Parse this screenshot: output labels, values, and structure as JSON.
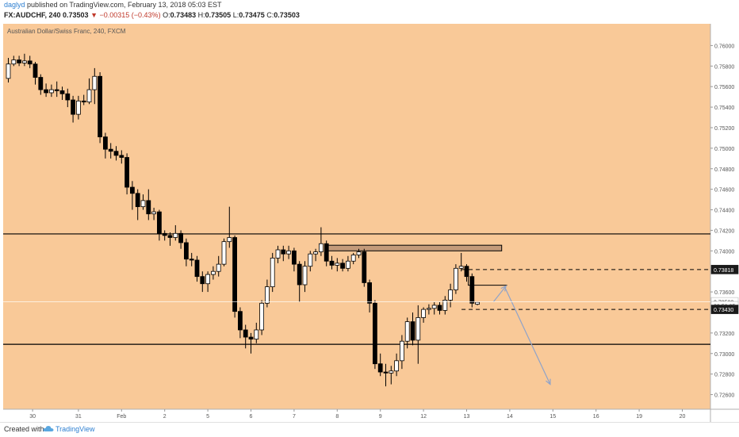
{
  "header": {
    "publisher": "daglyd",
    "published_text": "published on TradingView.com, February 13, 2018 05:03 EST",
    "symbol": "FX:AUDCHF, 240",
    "last": "0.73503",
    "change": "▼ −0.00315 (−0.43%)",
    "open_label": "O:",
    "open": "0.73483",
    "high_label": "H:",
    "high": "0.73505",
    "low_label": "L:",
    "low": "0.73475",
    "close_label": "C:",
    "close": "0.73503"
  },
  "footer": {
    "created_with": "Created with",
    "brand": "TradingView",
    "brand_icon": "cloud-icon"
  },
  "colors": {
    "plot_bg": "#f9c998",
    "axis_bg": "#ffffff",
    "bull": "#ffffff",
    "bear": "#000000",
    "line": "#000000",
    "resistance_box": "#c39a7a",
    "projection": "#8fa3c9",
    "current_price": "#ffffff"
  },
  "chart_data": {
    "type": "candlestick",
    "title": "Australian Dollar/Swiss Franc, 240, FXCM",
    "ylim": [
      0.7255,
      0.7615
    ],
    "x_ticks": [
      {
        "label": "30",
        "i": 4.5
      },
      {
        "label": "31",
        "i": 13
      },
      {
        "label": "Feb",
        "i": 21
      },
      {
        "label": "2",
        "i": 29
      },
      {
        "label": "5",
        "i": 37
      },
      {
        "label": "6",
        "i": 45
      },
      {
        "label": "7",
        "i": 53
      },
      {
        "label": "8",
        "i": 61
      },
      {
        "label": "9",
        "i": 69
      },
      {
        "label": "12",
        "i": 77
      },
      {
        "label": "13",
        "i": 85
      },
      {
        "label": "14",
        "i": 93
      },
      {
        "label": "15",
        "i": 101
      },
      {
        "label": "16",
        "i": 109
      },
      {
        "label": "19",
        "i": 117
      },
      {
        "label": "20",
        "i": 125
      }
    ],
    "y_ticks": [
      "0.76000",
      "0.75800",
      "0.75600",
      "0.75400",
      "0.75200",
      "0.75000",
      "0.74800",
      "0.74600",
      "0.74400",
      "0.74200",
      "0.74000",
      "0.73600",
      "0.73200",
      "0.73000",
      "0.72800",
      "0.72600"
    ],
    "candles": [
      [
        0.7568,
        0.7582,
        0.7564,
        0.7588
      ],
      [
        0.7582,
        0.7586,
        0.758,
        0.759
      ],
      [
        0.7586,
        0.7583,
        0.758,
        0.759
      ],
      [
        0.7583,
        0.7585,
        0.758,
        0.7592
      ],
      [
        0.7585,
        0.7582,
        0.7578,
        0.759
      ],
      [
        0.7582,
        0.7569,
        0.7562,
        0.7584
      ],
      [
        0.7569,
        0.7557,
        0.7552,
        0.7572
      ],
      [
        0.7557,
        0.7554,
        0.755,
        0.7563
      ],
      [
        0.7554,
        0.7557,
        0.755,
        0.7562
      ],
      [
        0.7557,
        0.7556,
        0.755,
        0.7565
      ],
      [
        0.7556,
        0.7553,
        0.7547,
        0.756
      ],
      [
        0.7553,
        0.7547,
        0.754,
        0.7558
      ],
      [
        0.7547,
        0.7533,
        0.7525,
        0.7551
      ],
      [
        0.7533,
        0.7546,
        0.7528,
        0.7551
      ],
      [
        0.7546,
        0.7545,
        0.7542,
        0.7552
      ],
      [
        0.7545,
        0.7557,
        0.7543,
        0.7568
      ],
      [
        0.7557,
        0.757,
        0.7543,
        0.7578
      ],
      [
        0.757,
        0.7511,
        0.7505,
        0.7574
      ],
      [
        0.7511,
        0.7499,
        0.749,
        0.7515
      ],
      [
        0.7499,
        0.7497,
        0.749,
        0.7505
      ],
      [
        0.7497,
        0.7493,
        0.7488,
        0.7502
      ],
      [
        0.7493,
        0.7491,
        0.7485,
        0.7498
      ],
      [
        0.7491,
        0.7462,
        0.7455,
        0.7495
      ],
      [
        0.7462,
        0.7456,
        0.744,
        0.7468
      ],
      [
        0.7456,
        0.7443,
        0.743,
        0.746
      ],
      [
        0.7443,
        0.7449,
        0.744,
        0.7455
      ],
      [
        0.7449,
        0.7436,
        0.743,
        0.746
      ],
      [
        0.7436,
        0.7438,
        0.743,
        0.7442
      ],
      [
        0.7438,
        0.7417,
        0.741,
        0.744
      ],
      [
        0.7417,
        0.7415,
        0.741,
        0.742
      ],
      [
        0.7415,
        0.7413,
        0.7405,
        0.7418
      ],
      [
        0.7413,
        0.7417,
        0.741,
        0.7425
      ],
      [
        0.7417,
        0.7408,
        0.7402,
        0.742
      ],
      [
        0.7408,
        0.7392,
        0.7385,
        0.7412
      ],
      [
        0.7392,
        0.7391,
        0.7385,
        0.7398
      ],
      [
        0.7391,
        0.7375,
        0.737,
        0.7395
      ],
      [
        0.7375,
        0.7368,
        0.736,
        0.738
      ],
      [
        0.7368,
        0.7377,
        0.736,
        0.738
      ],
      [
        0.7377,
        0.738,
        0.7372,
        0.7385
      ],
      [
        0.738,
        0.7387,
        0.7375,
        0.7395
      ],
      [
        0.7387,
        0.7409,
        0.7385,
        0.7412
      ],
      [
        0.7409,
        0.7413,
        0.7403,
        0.7443
      ],
      [
        0.7413,
        0.7341,
        0.7335,
        0.7415
      ],
      [
        0.7341,
        0.7323,
        0.7315,
        0.7345
      ],
      [
        0.7323,
        0.7316,
        0.7305,
        0.7328
      ],
      [
        0.7316,
        0.7314,
        0.73,
        0.732
      ],
      [
        0.7314,
        0.7323,
        0.731,
        0.733
      ],
      [
        0.7323,
        0.7349,
        0.7318,
        0.7352
      ],
      [
        0.7349,
        0.7365,
        0.7345,
        0.7372
      ],
      [
        0.7365,
        0.7393,
        0.736,
        0.7398
      ],
      [
        0.7393,
        0.7401,
        0.7388,
        0.7405
      ],
      [
        0.7401,
        0.7397,
        0.739,
        0.7405
      ],
      [
        0.7397,
        0.74,
        0.7392,
        0.7405
      ],
      [
        0.74,
        0.7387,
        0.738,
        0.7403
      ],
      [
        0.7387,
        0.7367,
        0.735,
        0.739
      ],
      [
        0.7367,
        0.7385,
        0.736,
        0.739
      ],
      [
        0.7385,
        0.7397,
        0.738,
        0.74
      ],
      [
        0.7397,
        0.7399,
        0.739,
        0.7402
      ],
      [
        0.7399,
        0.7407,
        0.7395,
        0.7423
      ],
      [
        0.7407,
        0.739,
        0.7385,
        0.741
      ],
      [
        0.739,
        0.7386,
        0.7382,
        0.7395
      ],
      [
        0.7386,
        0.7388,
        0.738,
        0.7393
      ],
      [
        0.7388,
        0.7383,
        0.738,
        0.7392
      ],
      [
        0.7383,
        0.739,
        0.738,
        0.7395
      ],
      [
        0.739,
        0.7396,
        0.7387,
        0.7398
      ],
      [
        0.7396,
        0.7399,
        0.7393,
        0.7402
      ],
      [
        0.7399,
        0.7369,
        0.7365,
        0.7402
      ],
      [
        0.7369,
        0.7349,
        0.734,
        0.7372
      ],
      [
        0.7349,
        0.729,
        0.7285,
        0.7352
      ],
      [
        0.729,
        0.7282,
        0.7278,
        0.73
      ],
      [
        0.7282,
        0.7281,
        0.7268,
        0.729
      ],
      [
        0.7281,
        0.7283,
        0.727,
        0.7288
      ],
      [
        0.7283,
        0.7293,
        0.7278,
        0.73
      ],
      [
        0.7293,
        0.7312,
        0.7285,
        0.7318
      ],
      [
        0.7312,
        0.7331,
        0.7305,
        0.7335
      ],
      [
        0.7331,
        0.7313,
        0.7308,
        0.734
      ],
      [
        0.7313,
        0.7335,
        0.729,
        0.7347
      ],
      [
        0.7335,
        0.7343,
        0.733,
        0.7345
      ],
      [
        0.7343,
        0.7344,
        0.7338,
        0.7348
      ],
      [
        0.7344,
        0.7347,
        0.7338,
        0.735
      ],
      [
        0.7347,
        0.7342,
        0.7338,
        0.735
      ],
      [
        0.7342,
        0.7352,
        0.7338,
        0.7356
      ],
      [
        0.7352,
        0.7362,
        0.7345,
        0.7368
      ],
      [
        0.7362,
        0.7383,
        0.7358,
        0.7387
      ],
      [
        0.7383,
        0.7385,
        0.738,
        0.7398
      ],
      [
        0.7385,
        0.7375,
        0.737,
        0.7387
      ],
      [
        0.7375,
        0.7349,
        0.7345,
        0.7378
      ],
      [
        0.7348,
        0.735,
        0.7347,
        0.73505
      ]
    ],
    "h_lines": [
      0.74165,
      0.7309
    ],
    "dashed_lines": [
      0.73818,
      0.7343
    ],
    "resistance_zone": {
      "i0": 58.8,
      "i1": 91.5,
      "y0": 0.74,
      "y1": 0.74055
    },
    "small_box": {
      "i0": 85.3,
      "i1": 92.5,
      "y_top": 0.73818,
      "y_bot": 0.73665
    },
    "projection_arrows": [
      {
        "i0": 90.0,
        "y0": 0.73505,
        "i1": 92.3,
        "y1": 0.73658
      },
      {
        "i0": 92.0,
        "y0": 0.73655,
        "i1": 100.5,
        "y1": 0.727
      }
    ],
    "price_labels": [
      {
        "text": "0.73818",
        "y": 0.73818,
        "style": "dark"
      },
      {
        "text": "0.73503",
        "y": 0.73503,
        "style": "light"
      },
      {
        "text": "03:56:25",
        "y": 0.73465,
        "style": "light"
      },
      {
        "text": "0.73430",
        "y": 0.7343,
        "style": "dark"
      }
    ]
  }
}
